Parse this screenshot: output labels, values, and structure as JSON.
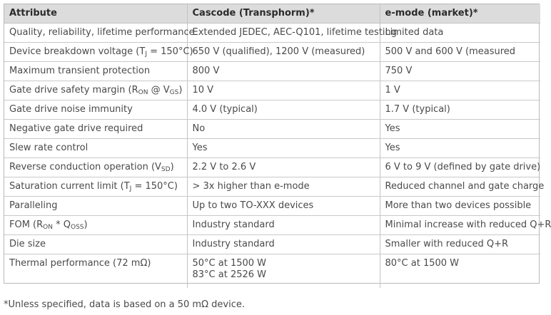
{
  "table": {
    "headers": [
      "Attribute",
      "Cascode (Transphorm)*",
      "e-mode (market)*"
    ],
    "rows": [
      {
        "attribute": "Quality, reliability, lifetime performance",
        "cascode": [
          "Extended JEDEC, AEC-Q101, lifetime testing"
        ],
        "emode": [
          "Limited data"
        ]
      },
      {
        "attribute": "Device breakdown voltage (T",
        "attr_sub": "J",
        "attr_tail": " = 150°C)",
        "cascode": [
          "650 V (qualified), 1200 V (measured)"
        ],
        "emode": [
          "500 V and 600 V (measured"
        ]
      },
      {
        "attribute": "Maximum transient protection",
        "cascode": [
          "800 V"
        ],
        "emode": [
          "750 V"
        ]
      },
      {
        "attribute": "Gate drive safety margin (R",
        "attr_sub": "ON",
        "attr_mid": " @ V",
        "attr_sub2": "GS",
        "attr_tail": ")",
        "cascode": [
          "10 V"
        ],
        "emode": [
          "1 V"
        ]
      },
      {
        "attribute": "Gate drive noise immunity",
        "cascode": [
          "4.0 V (typical)"
        ],
        "emode": [
          "1.7 V (typical)"
        ]
      },
      {
        "attribute": "Negative gate drive required",
        "cascode": [
          "No"
        ],
        "emode": [
          "Yes"
        ]
      },
      {
        "attribute": "Slew rate control",
        "cascode": [
          "Yes"
        ],
        "emode": [
          "Yes"
        ]
      },
      {
        "attribute": "Reverse conduction operation (V",
        "attr_sub": "SD",
        "attr_tail": ")",
        "cascode": [
          "2.2 V to 2.6 V"
        ],
        "emode": [
          "6 V to 9 V (defined by gate drive)"
        ]
      },
      {
        "attribute": "Saturation current limit (T",
        "attr_sub": "J",
        "attr_tail": " = 150°C)",
        "cascode": [
          "> 3x higher than e-mode"
        ],
        "emode": [
          "Reduced channel and gate charge"
        ]
      },
      {
        "attribute": "Paralleling",
        "cascode": [
          "Up to two TO-XXX devices"
        ],
        "emode": [
          "More than two devices possible"
        ]
      },
      {
        "attribute": "FOM (R",
        "attr_sub": "ON",
        "attr_mid": " * Q",
        "attr_sub2": "OSS",
        "attr_tail": ")",
        "cascode": [
          "Industry standard"
        ],
        "emode": [
          "Minimal increase with reduced Q+R"
        ]
      },
      {
        "attribute": "Die size",
        "cascode": [
          "Industry standard"
        ],
        "emode": [
          "Smaller with reduced Q+R"
        ]
      },
      {
        "attribute": "Thermal performance (72 mΩ)",
        "cascode": [
          "50°C at 1500 W",
          "83°C at 2526 W"
        ],
        "emode": [
          "80°C at 1500 W"
        ]
      }
    ]
  },
  "footnote": "*Unless specified, data is based on a 50 mΩ device."
}
